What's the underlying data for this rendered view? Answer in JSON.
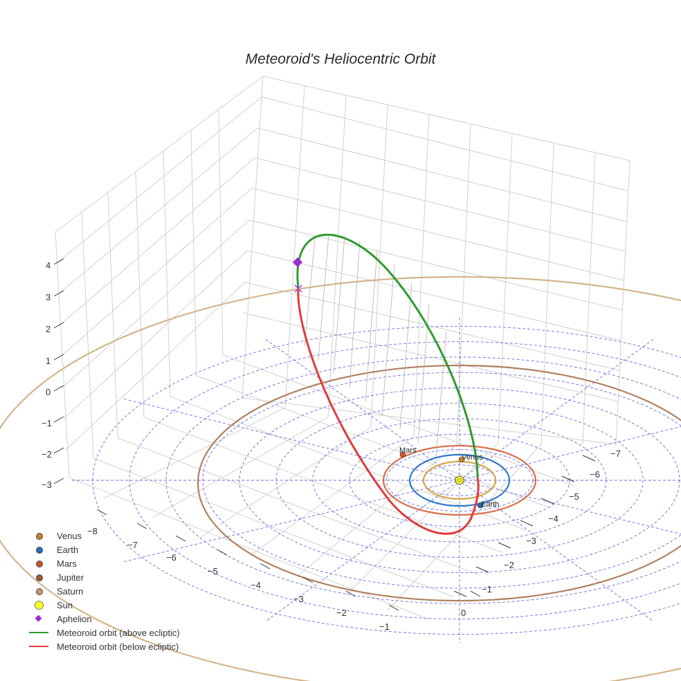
{
  "title": "Meteoroid's Heliocentric Orbit",
  "chart_data": {
    "type": "scatter3d",
    "title": "Meteoroid's Heliocentric Orbit",
    "x_ticks": [
      "−8",
      "−7",
      "−6",
      "−5",
      "−4",
      "−3",
      "−2",
      "−1",
      "0"
    ],
    "y_ticks": [
      "−1",
      "−2",
      "−3",
      "−4",
      "−5",
      "−6",
      "−7"
    ],
    "z_ticks": [
      "4",
      "3",
      "2",
      "1",
      "0",
      "−1",
      "−2",
      "−3"
    ],
    "planets": [
      {
        "name": "Venus",
        "color": "#c8822c",
        "orbit_color": "#d9a545",
        "a": 0.72
      },
      {
        "name": "Earth",
        "color": "#1f6fc2",
        "orbit_color": "#2f78cc",
        "a": 1.0
      },
      {
        "name": "Mars",
        "color": "#d0552c",
        "orbit_color": "#d9704a",
        "a": 1.52
      },
      {
        "name": "Jupiter",
        "color": "#9b5a35",
        "orbit_color": "#b08060",
        "a": 5.2
      },
      {
        "name": "Saturn",
        "color": "#c8966c",
        "orbit_color": "#d4b48c",
        "a": 9.5
      }
    ],
    "sun": {
      "name": "Sun",
      "color": "#ffff22"
    },
    "aphelion": {
      "name": "Aphelion",
      "color": "#9b2ccf"
    },
    "series": [
      {
        "name": "Meteoroid orbit (above ecliptic)",
        "color": "#2e9b2e"
      },
      {
        "name": "Meteoroid orbit (below ecliptic)",
        "color": "#e23a3a"
      }
    ],
    "ecliptic_grid_rings_au": [
      1,
      2,
      3,
      4,
      5,
      6,
      7,
      8,
      9,
      10
    ]
  },
  "legend": [
    {
      "label": "Venus",
      "kind": "dot",
      "color": "#c8822c"
    },
    {
      "label": "Earth",
      "kind": "dot",
      "color": "#1f6fc2"
    },
    {
      "label": "Mars",
      "kind": "dot",
      "color": "#d0552c"
    },
    {
      "label": "Jupiter",
      "kind": "dot",
      "color": "#9b5a35"
    },
    {
      "label": "Saturn",
      "kind": "dot",
      "color": "#c8966c"
    },
    {
      "label": "Sun",
      "kind": "sun",
      "color": "#ffff22"
    },
    {
      "label": "Aphelion",
      "kind": "diam",
      "color": "#9b2ccf"
    },
    {
      "label": "Meteoroid orbit (above ecliptic)",
      "kind": "line",
      "color": "#2e9b2e"
    },
    {
      "label": "Meteoroid orbit (below ecliptic)",
      "kind": "line",
      "color": "#e23a3a"
    }
  ],
  "labels": {
    "mars": "Mars",
    "venus": "Venus",
    "earth": "Earth"
  }
}
